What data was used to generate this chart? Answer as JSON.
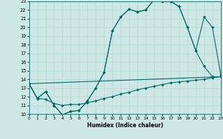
{
  "xlabel": "Humidex (Indice chaleur)",
  "xlim": [
    0,
    23
  ],
  "ylim": [
    10,
    23
  ],
  "xticks": [
    0,
    1,
    2,
    3,
    4,
    5,
    6,
    7,
    8,
    9,
    10,
    11,
    12,
    13,
    14,
    15,
    16,
    17,
    18,
    19,
    20,
    21,
    22,
    23
  ],
  "yticks": [
    10,
    11,
    12,
    13,
    14,
    15,
    16,
    17,
    18,
    19,
    20,
    21,
    22,
    23
  ],
  "bg_color": "#cde8e4",
  "grid_color": "#b0d8d4",
  "line_color": "#006868",
  "line1_x": [
    0,
    1,
    2,
    3,
    4,
    5,
    6,
    7,
    8,
    9,
    10,
    11,
    12,
    13,
    14,
    15,
    16,
    17,
    18,
    19,
    20,
    21,
    22,
    23
  ],
  "line1_y": [
    13.5,
    11.8,
    12.6,
    11.0,
    9.9,
    10.3,
    10.4,
    11.5,
    13.0,
    14.8,
    19.6,
    21.2,
    22.1,
    21.8,
    22.0,
    23.2,
    23.0,
    23.0,
    22.4,
    20.0,
    17.3,
    21.2,
    20.0,
    14.5
  ],
  "line2_x": [
    0,
    1,
    2,
    3,
    4,
    5,
    6,
    7,
    8,
    9,
    10,
    11,
    12,
    13,
    14,
    15,
    16,
    17,
    18,
    19,
    20,
    21,
    22,
    23
  ],
  "line2_y": [
    13.5,
    11.8,
    12.6,
    11.0,
    9.9,
    10.3,
    10.4,
    11.5,
    13.0,
    14.8,
    19.6,
    21.2,
    22.1,
    21.8,
    22.0,
    23.2,
    23.0,
    23.0,
    22.4,
    20.0,
    17.3,
    15.5,
    14.3,
    14.3
  ],
  "line3_x": [
    0,
    1,
    2,
    3,
    4,
    5,
    6,
    7,
    8,
    9,
    10,
    11,
    12,
    13,
    14,
    15,
    16,
    17,
    18,
    19,
    20,
    21,
    22,
    23
  ],
  "line3_y": [
    13.5,
    11.8,
    11.7,
    11.2,
    11.0,
    11.1,
    11.1,
    11.3,
    11.5,
    11.8,
    12.0,
    12.3,
    12.5,
    12.8,
    13.0,
    13.2,
    13.4,
    13.6,
    13.7,
    13.8,
    13.9,
    14.0,
    14.2,
    14.3
  ],
  "line4_x": [
    0,
    23
  ],
  "line4_y": [
    13.5,
    14.3
  ]
}
